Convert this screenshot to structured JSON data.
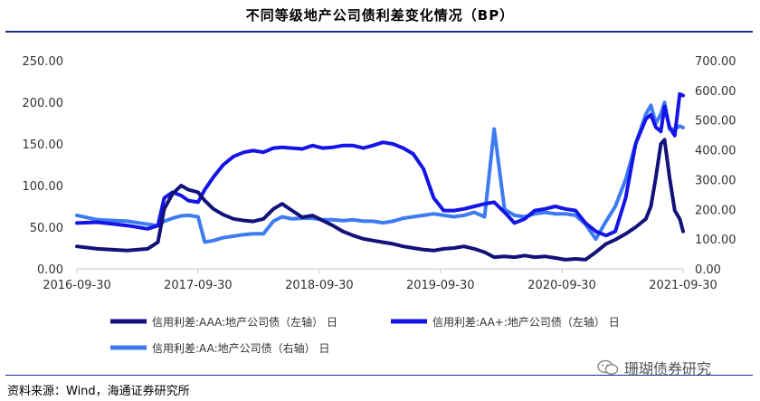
{
  "title": "不同等级地产公司债利差变化情况（BP）",
  "source": "资料来源：Wind，海通证券研究所",
  "watermark": "珊瑚债券研究",
  "colors": {
    "aaa": "#12127a",
    "aaplus": "#1414e6",
    "aa": "#3d7bf0",
    "rule": "#1f2d8a",
    "axis": "#c8c8c8"
  },
  "chart_data": {
    "type": "line",
    "title": "不同等级地产公司债利差变化情况（BP）",
    "x_ticks": [
      "2016-09-30",
      "2017-09-30",
      "2018-09-30",
      "2019-09-30",
      "2020-09-30",
      "2021-09-30"
    ],
    "xlim": [
      "2016-09-30",
      "2021-09-30"
    ],
    "y_left": {
      "ticks": [
        "0.00",
        "50.00",
        "100.00",
        "150.00",
        "200.00",
        "250.00"
      ],
      "lim": [
        0,
        250
      ]
    },
    "y_right": {
      "ticks": [
        "0.00",
        "100.00",
        "200.00",
        "300.00",
        "400.00",
        "500.00",
        "600.00",
        "700.00"
      ],
      "lim": [
        0,
        700
      ]
    },
    "legend_position": "bottom",
    "series": [
      {
        "name": "信用利差:AAA:地产公司债（左轴） 日",
        "axis": "left",
        "x": [
          "2016-09-30",
          "2016-12-01",
          "2017-03-01",
          "2017-05-01",
          "2017-06-01",
          "2017-06-20",
          "2017-07-15",
          "2017-08-10",
          "2017-09-01",
          "2017-09-30",
          "2017-10-20",
          "2017-11-15",
          "2017-12-15",
          "2018-01-15",
          "2018-02-15",
          "2018-03-15",
          "2018-04-15",
          "2018-05-15",
          "2018-06-10",
          "2018-07-10",
          "2018-08-10",
          "2018-09-10",
          "2018-10-10",
          "2018-11-10",
          "2018-12-10",
          "2019-01-10",
          "2019-02-10",
          "2019-03-10",
          "2019-04-10",
          "2019-05-10",
          "2019-06-10",
          "2019-07-10",
          "2019-08-10",
          "2019-09-10",
          "2019-10-10",
          "2019-11-10",
          "2019-12-10",
          "2020-01-10",
          "2020-02-10",
          "2020-03-10",
          "2020-04-10",
          "2020-05-10",
          "2020-06-10",
          "2020-07-10",
          "2020-08-10",
          "2020-09-10",
          "2020-10-10",
          "2020-11-10",
          "2020-12-10",
          "2021-01-10",
          "2021-02-10",
          "2021-03-10",
          "2021-04-10",
          "2021-05-10",
          "2021-06-10",
          "2021-06-25",
          "2021-07-10",
          "2021-07-25",
          "2021-08-05",
          "2021-08-20",
          "2021-09-05",
          "2021-09-20",
          "2021-09-30"
        ],
        "values": [
          27,
          24,
          22,
          24,
          32,
          72,
          90,
          100,
          95,
          92,
          82,
          72,
          65,
          60,
          58,
          57,
          60,
          72,
          78,
          70,
          62,
          64,
          58,
          52,
          45,
          40,
          36,
          34,
          32,
          30,
          27,
          25,
          23,
          22,
          24,
          25,
          27,
          24,
          20,
          14,
          15,
          14,
          16,
          14,
          15,
          13,
          11,
          12,
          11,
          20,
          30,
          35,
          42,
          50,
          60,
          75,
          110,
          150,
          155,
          110,
          70,
          60,
          45
        ]
      },
      {
        "name": "信用利差:AA+:地产公司债（左轴） 日",
        "axis": "left",
        "x": [
          "2016-09-30",
          "2016-12-01",
          "2017-03-01",
          "2017-05-01",
          "2017-06-01",
          "2017-06-20",
          "2017-07-15",
          "2017-08-10",
          "2017-09-01",
          "2017-09-30",
          "2017-10-20",
          "2017-11-15",
          "2017-12-15",
          "2018-01-15",
          "2018-02-15",
          "2018-03-15",
          "2018-04-15",
          "2018-05-15",
          "2018-06-10",
          "2018-07-10",
          "2018-08-10",
          "2018-09-10",
          "2018-10-10",
          "2018-11-10",
          "2018-12-10",
          "2019-01-10",
          "2019-02-10",
          "2019-03-10",
          "2019-04-10",
          "2019-05-10",
          "2019-06-10",
          "2019-07-10",
          "2019-08-10",
          "2019-09-10",
          "2019-10-10",
          "2019-11-10",
          "2019-12-10",
          "2020-01-10",
          "2020-02-10",
          "2020-03-10",
          "2020-04-10",
          "2020-05-10",
          "2020-06-10",
          "2020-07-10",
          "2020-08-10",
          "2020-09-10",
          "2020-10-10",
          "2020-11-10",
          "2020-12-10",
          "2021-01-10",
          "2021-02-10",
          "2021-03-10",
          "2021-04-10",
          "2021-05-10",
          "2021-06-10",
          "2021-06-25",
          "2021-07-10",
          "2021-07-25",
          "2021-08-05",
          "2021-08-20",
          "2021-09-05",
          "2021-09-20",
          "2021-09-30"
        ],
        "values": [
          55,
          56,
          52,
          48,
          52,
          85,
          92,
          88,
          82,
          80,
          95,
          110,
          125,
          135,
          140,
          142,
          140,
          145,
          146,
          145,
          144,
          148,
          145,
          146,
          148,
          148,
          145,
          148,
          152,
          150,
          145,
          138,
          120,
          85,
          70,
          70,
          72,
          75,
          78,
          80,
          68,
          55,
          60,
          70,
          72,
          75,
          72,
          70,
          55,
          45,
          40,
          45,
          85,
          150,
          180,
          185,
          170,
          165,
          195,
          170,
          160,
          210,
          208
        ]
      },
      {
        "name": "信用利差:AA:地产公司债（右轴） 日",
        "axis": "right",
        "x": [
          "2016-09-30",
          "2016-12-01",
          "2017-03-01",
          "2017-05-01",
          "2017-06-01",
          "2017-06-20",
          "2017-07-15",
          "2017-08-10",
          "2017-09-01",
          "2017-09-30",
          "2017-10-20",
          "2017-11-15",
          "2017-12-15",
          "2018-01-15",
          "2018-02-15",
          "2018-03-15",
          "2018-04-15",
          "2018-05-15",
          "2018-06-10",
          "2018-07-10",
          "2018-08-10",
          "2018-09-10",
          "2018-10-10",
          "2018-11-10",
          "2018-12-10",
          "2019-01-10",
          "2019-02-10",
          "2019-03-10",
          "2019-04-10",
          "2019-05-10",
          "2019-06-10",
          "2019-07-10",
          "2019-08-10",
          "2019-09-10",
          "2019-10-10",
          "2019-11-10",
          "2019-12-10",
          "2020-01-10",
          "2020-02-10",
          "2020-03-10",
          "2020-04-10",
          "2020-05-10",
          "2020-06-10",
          "2020-07-10",
          "2020-08-10",
          "2020-09-10",
          "2020-10-10",
          "2020-11-10",
          "2020-12-10",
          "2021-01-10",
          "2021-02-10",
          "2021-03-10",
          "2021-04-10",
          "2021-05-10",
          "2021-06-10",
          "2021-06-25",
          "2021-07-10",
          "2021-07-25",
          "2021-08-05",
          "2021-08-20",
          "2021-09-05",
          "2021-09-20",
          "2021-09-30"
        ],
        "values": [
          180,
          165,
          160,
          150,
          145,
          160,
          170,
          178,
          180,
          175,
          90,
          95,
          105,
          110,
          115,
          118,
          118,
          160,
          175,
          168,
          170,
          170,
          165,
          165,
          162,
          165,
          160,
          160,
          155,
          160,
          170,
          175,
          180,
          185,
          180,
          175,
          180,
          190,
          175,
          470,
          200,
          180,
          175,
          185,
          190,
          185,
          185,
          180,
          150,
          100,
          160,
          210,
          300,
          420,
          520,
          550,
          490,
          520,
          560,
          470,
          470,
          480,
          475
        ]
      }
    ]
  }
}
